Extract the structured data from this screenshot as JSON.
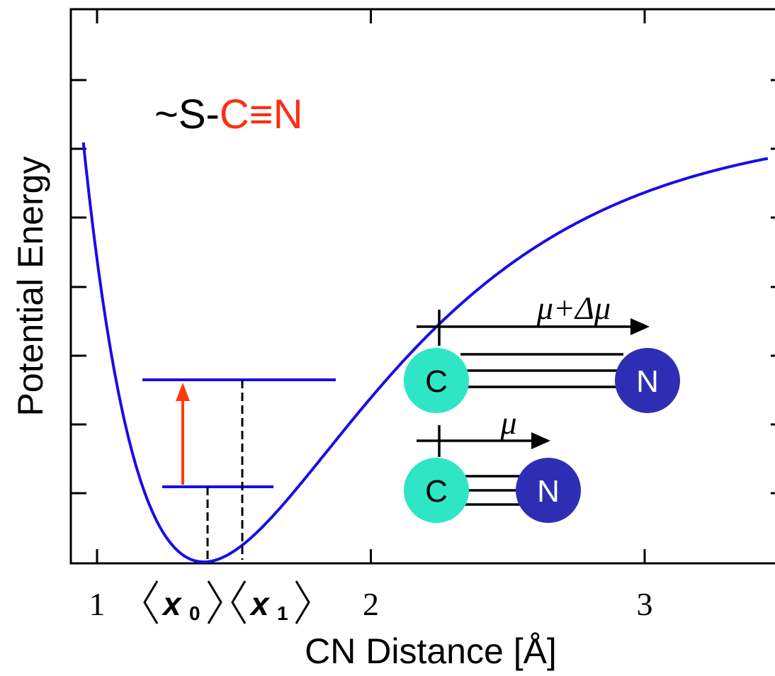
{
  "chart_data": {
    "type": "line",
    "title": "",
    "xlabel": "CN Distance  [Å]",
    "ylabel": "Potential Energy",
    "x_ticks": [
      "1",
      "2",
      "3"
    ],
    "xlim": [
      0.9,
      3.45
    ],
    "x_special_labels": [
      {
        "symbol": "x",
        "subscript": "0",
        "at": 1.39
      },
      {
        "symbol": "x",
        "subscript": "1",
        "at": 1.53
      }
    ],
    "curve": {
      "name": "",
      "color": "#1a0de6",
      "equilibrium": 1.39,
      "morse_a": 1.55,
      "well_depth": 1.0
    },
    "levels": [
      {
        "energy": 0.11,
        "mean_x": 1.39,
        "from": 1.14,
        "to": 1.63
      },
      {
        "energy": 0.36,
        "mean_x": 1.53,
        "from": 1.06,
        "to": 1.88
      }
    ],
    "excitation_arrow": {
      "from_level": 0,
      "to_level": 1,
      "at": 1.08,
      "color": "#ff3a0a"
    }
  },
  "molecule_label": {
    "prefix": "~S-",
    "highlight": "C≡N",
    "highlight_color": "#ff2e12"
  },
  "dipole_diagram": {
    "top": {
      "dipole_label": "μ+Δμ",
      "atom1": "C",
      "atom2": "N",
      "bonds": 3
    },
    "bottom": {
      "dipole_label": "μ",
      "atom1": "C",
      "atom2": "N",
      "bonds": 3
    },
    "c_color": "#2ee6c6",
    "n_color": "#2e2eb4"
  }
}
